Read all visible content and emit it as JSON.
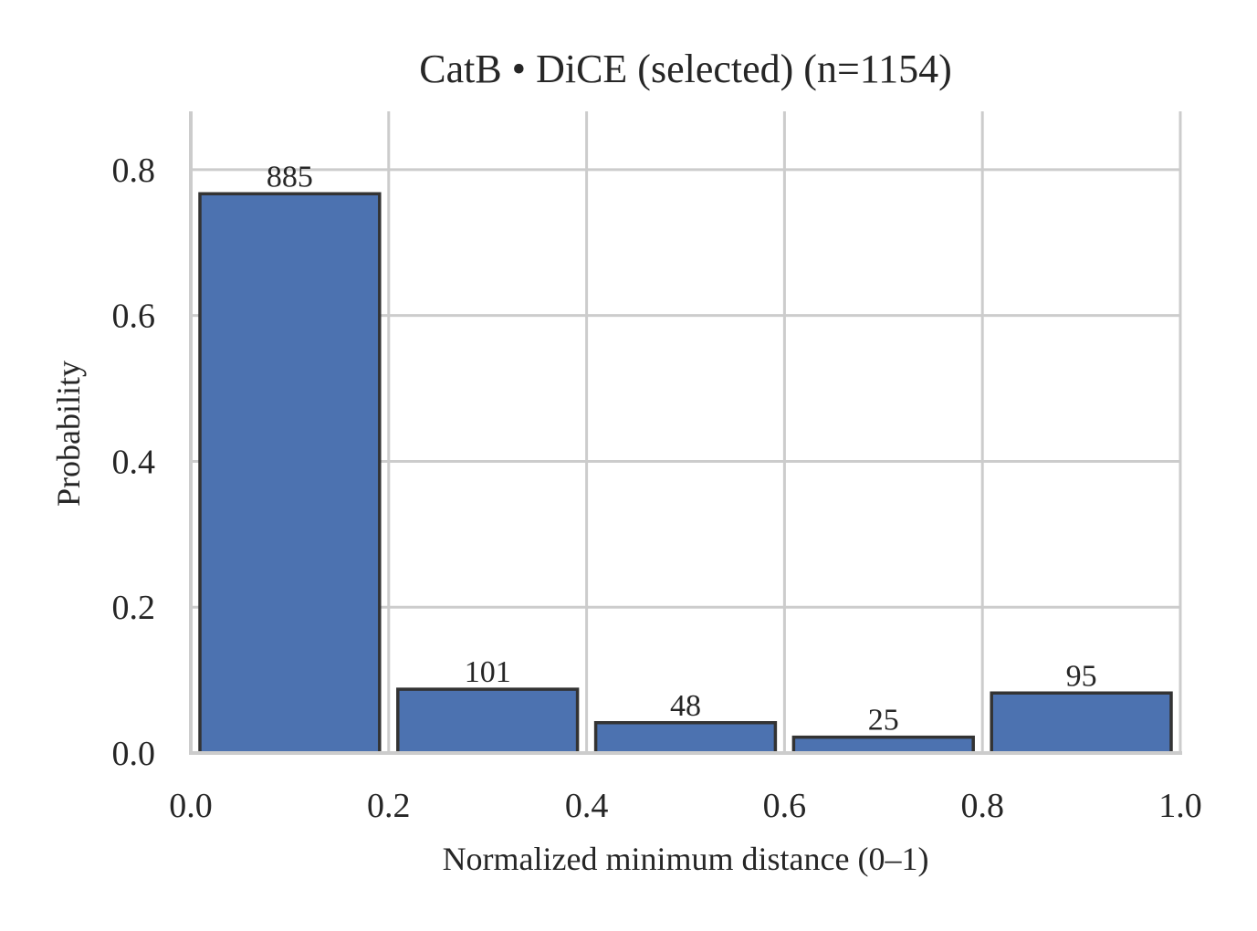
{
  "chart_data": {
    "type": "bar",
    "title": "CatB • DiCE (selected)  (n=1154)",
    "xlabel": "Normalized minimum distance (0–1)",
    "ylabel": "Probability",
    "xlim": [
      0.0,
      1.0
    ],
    "ylim": [
      0.0,
      0.88
    ],
    "xticks": [
      "0.0",
      "0.2",
      "0.4",
      "0.6",
      "0.8",
      "1.0"
    ],
    "yticks": [
      "0.0",
      "0.2",
      "0.4",
      "0.6",
      "0.8"
    ],
    "bins": [
      {
        "x0": 0.0,
        "x1": 0.2,
        "value": 0.767,
        "count": "885"
      },
      {
        "x0": 0.2,
        "x1": 0.4,
        "value": 0.0875,
        "count": "101"
      },
      {
        "x0": 0.4,
        "x1": 0.6,
        "value": 0.0416,
        "count": "48"
      },
      {
        "x0": 0.6,
        "x1": 0.8,
        "value": 0.0217,
        "count": "25"
      },
      {
        "x0": 0.8,
        "x1": 1.0,
        "value": 0.0823,
        "count": "95"
      }
    ],
    "grid": true,
    "bar_color": "#4c72b0",
    "edge_color": "#333333"
  }
}
